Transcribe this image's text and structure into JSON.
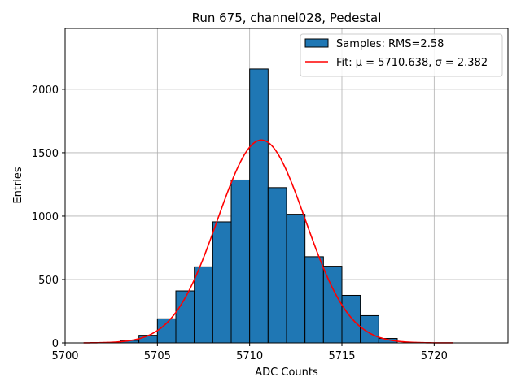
{
  "chart_data": {
    "type": "bar",
    "title": "Run 675, channel028, Pedestal",
    "xlabel": "ADC Counts",
    "ylabel": "Entries",
    "xlim": [
      5700,
      5724
    ],
    "ylim": [
      0,
      2480
    ],
    "xticks": [
      5700,
      5705,
      5710,
      5715,
      5720
    ],
    "yticks": [
      0,
      500,
      1000,
      1500,
      2000
    ],
    "grid": true,
    "legend_position": "upper right",
    "colors": {
      "bar_fill": "#1f77b4",
      "bar_edge": "#000000",
      "fit_line": "#ff0000"
    },
    "histogram": {
      "name": "Samples: RMS=2.58",
      "bin_width": 1,
      "bin_left_edges": [
        5703,
        5704,
        5705,
        5706,
        5707,
        5708,
        5709,
        5710,
        5711,
        5712,
        5713,
        5714,
        5715,
        5716,
        5717
      ],
      "counts": [
        20,
        60,
        190,
        410,
        600,
        955,
        1285,
        2160,
        1225,
        1015,
        680,
        605,
        375,
        215,
        35
      ]
    },
    "fit": {
      "name": "Fit: μ = 5710.638, σ = 2.382",
      "mu": 5710.638,
      "sigma": 2.382,
      "amplitude": 1600,
      "x_range": [
        5701,
        5721
      ]
    }
  }
}
